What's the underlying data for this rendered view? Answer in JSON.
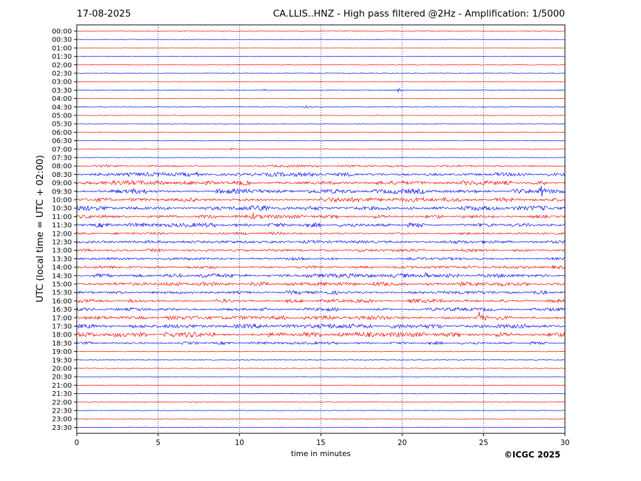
{
  "header": {
    "date": "17-08-2025",
    "title": "CA.LLIS..HNZ - High pass filtered @2Hz - Amplification: 1/5000"
  },
  "footer": {
    "copyright": "©ICGC 2025"
  },
  "chart_data": {
    "type": "line",
    "title": "CA.LLIS..HNZ - High pass filtered @2Hz - Amplification: 1/5000",
    "xlabel": "time in minutes",
    "ylabel": "UTC (local time = UTC + 02:00)",
    "xlim": [
      0,
      30
    ],
    "x_ticks": [
      0,
      5,
      10,
      15,
      20,
      25,
      30
    ],
    "grid": "vertical dotted at x ticks",
    "colors": {
      "odd_trace": "#ff0000",
      "even_trace": "#0000ff"
    },
    "rows": [
      "00:00",
      "00:30",
      "01:00",
      "01:30",
      "02:00",
      "02:30",
      "03:00",
      "03:30",
      "04:00",
      "04:30",
      "05:00",
      "05:30",
      "06:00",
      "06:30",
      "07:00",
      "07:30",
      "08:00",
      "08:30",
      "09:00",
      "09:30",
      "10:00",
      "10:30",
      "11:00",
      "11:30",
      "12:00",
      "12:30",
      "13:00",
      "13:30",
      "14:00",
      "14:30",
      "15:00",
      "15:30",
      "16:00",
      "16:30",
      "17:00",
      "17:30",
      "18:00",
      "18:30",
      "19:00",
      "19:30",
      "20:00",
      "20:30",
      "21:00",
      "21:30",
      "22:00",
      "22:30",
      "23:00",
      "23:30"
    ],
    "noise_level": [
      0.4,
      0.4,
      0.4,
      0.4,
      0.4,
      0.4,
      0.4,
      0.5,
      0.4,
      0.5,
      0.4,
      0.4,
      0.4,
      0.4,
      0.4,
      0.4,
      1.2,
      2.2,
      2.4,
      2.6,
      2.4,
      2.6,
      2.0,
      2.2,
      1.5,
      1.6,
      1.6,
      1.4,
      1.6,
      2.2,
      2.2,
      1.8,
      1.8,
      1.8,
      2.0,
      2.4,
      2.6,
      1.4,
      0.5,
      0.5,
      0.5,
      0.4,
      0.4,
      0.4,
      0.5,
      0.4,
      0.4,
      0.4
    ],
    "events": [
      {
        "row": "03:30",
        "minute": 19.8,
        "amplitude": 2.5
      },
      {
        "row": "03:30",
        "minute": 11.6,
        "amplitude": 1.5
      },
      {
        "row": "04:30",
        "minute": 14.1,
        "amplitude": 2.0
      },
      {
        "row": "07:00",
        "minute": 9.5,
        "amplitude": 1.5
      },
      {
        "row": "09:30",
        "minute": 28.6,
        "amplitude": 9
      },
      {
        "row": "10:30",
        "minute": 5.6,
        "amplitude": 4
      },
      {
        "row": "10:30",
        "minute": 11.2,
        "amplitude": 5
      },
      {
        "row": "11:00",
        "minute": 10.8,
        "amplitude": 4
      },
      {
        "row": "14:30",
        "minute": 21.5,
        "amplitude": 7
      },
      {
        "row": "16:30",
        "minute": 11.5,
        "amplitude": 3
      },
      {
        "row": "17:00",
        "minute": 25.0,
        "amplitude": 11
      },
      {
        "row": "17:00",
        "minute": 24.7,
        "amplitude": 8
      },
      {
        "row": "22:00",
        "minute": 7.2,
        "amplitude": 1.5
      }
    ]
  }
}
